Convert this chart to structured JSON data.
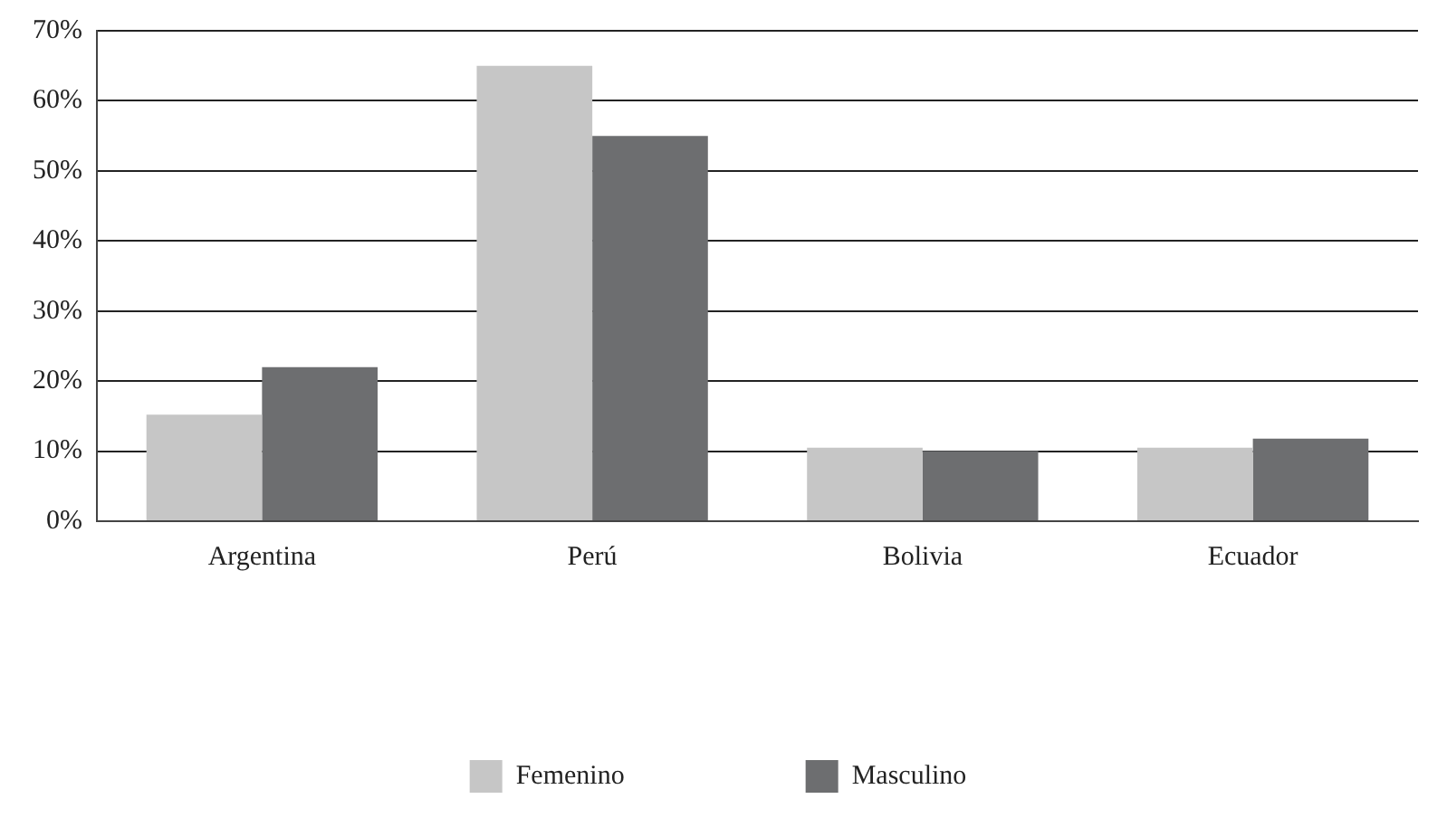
{
  "chart_data": {
    "type": "bar",
    "categories": [
      "Argentina",
      "Perú",
      "Bolivia",
      "Ecuador"
    ],
    "series": [
      {
        "name": "Femenino",
        "color": "#c6c6c6",
        "values": [
          15.2,
          65,
          10.5,
          10.5
        ]
      },
      {
        "name": "Masculino",
        "color": "#6d6e70",
        "values": [
          22,
          55,
          10,
          11.8
        ]
      }
    ],
    "ylim": [
      0,
      70
    ],
    "yticks": [
      {
        "value": 0,
        "label": "0%"
      },
      {
        "value": 10,
        "label": "10%"
      },
      {
        "value": 20,
        "label": "20%"
      },
      {
        "value": 30,
        "label": "30%"
      },
      {
        "value": 40,
        "label": "40%"
      },
      {
        "value": 50,
        "label": "50%"
      },
      {
        "value": 60,
        "label": "60%"
      },
      {
        "value": 70,
        "label": "70%"
      }
    ],
    "grid": "y",
    "legend": "bottom"
  }
}
